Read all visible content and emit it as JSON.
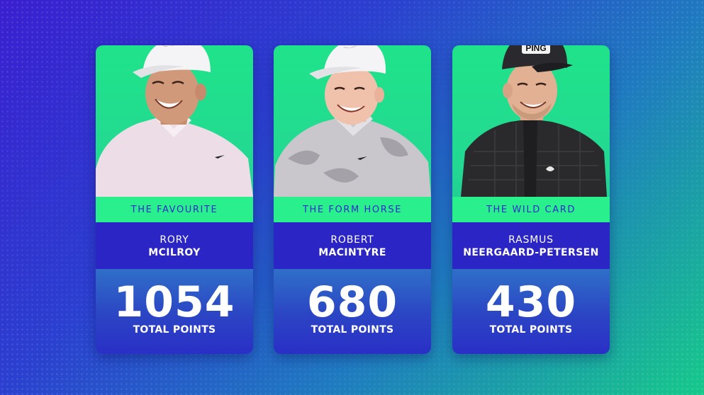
{
  "colors": {
    "background_start": "#3a1fd0",
    "background_end": "#16c98a",
    "label_band": "#2aef8d",
    "label_text": "#2a2fc8",
    "name_band": "#2a25c4",
    "points_band": "#2b44c4"
  },
  "players": [
    {
      "tag": "THE FAVOURITE",
      "first_name": "RORY",
      "last_name": "MCILROY",
      "points": "1054",
      "points_label": "TOTAL POINTS"
    },
    {
      "tag": "THE FORM HORSE",
      "first_name": "ROBERT",
      "last_name": "MACINTYRE",
      "points": "680",
      "points_label": "TOTAL POINTS"
    },
    {
      "tag": "THE WILD CARD",
      "first_name": "RASMUS",
      "last_name": "NEERGAARD-PETERSEN",
      "points": "430",
      "points_label": "TOTAL POINTS"
    }
  ],
  "cap_logo_text": "PING"
}
